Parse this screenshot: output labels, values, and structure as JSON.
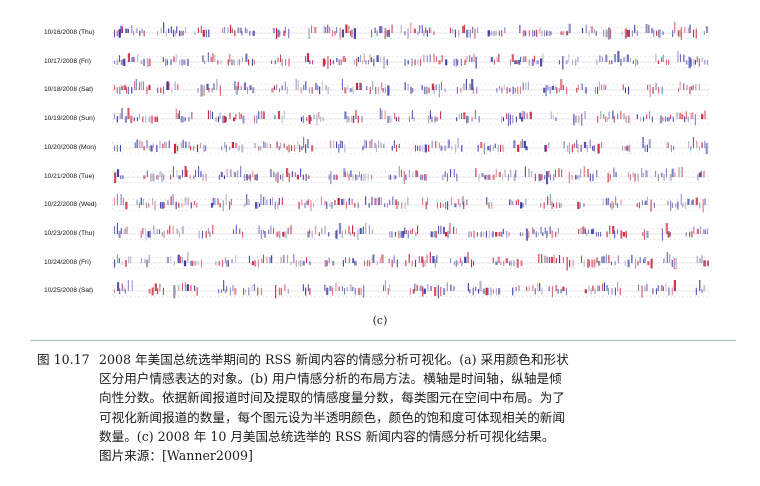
{
  "figure": {
    "rows": [
      "10/16/2008 (Thu)",
      "10/17/2008 (Fri)",
      "10/18/2008 (Sat)",
      "10/19/2008 (Sun)",
      "10/20/2008 (Mon)",
      "10/21/2008 (Tue)",
      "10/22/2008 (Wed)",
      "10/23/2008 (Thu)",
      "10/24/2008 (Fri)",
      "10/25/2008 (Sat)"
    ],
    "subcaption": "(c)",
    "colors": {
      "positive": "#c0162b",
      "negative": "#2a2a9e",
      "neutral": "#8a8aa8",
      "divider": "#9cc3d3"
    }
  },
  "caption": {
    "number": "图 10.17",
    "lines": [
      "2008 年美国总统选举期间的 RSS 新闻内容的情感分析可视化。(a) 采用颜色和形状",
      "区分用户情感表达的对象。(b) 用户情感分析的布局方法。横轴是时间轴，纵轴是倾",
      "向性分数。依据新闻报道时间及提取的情感度量分数，每类图元在空间中布局。为了",
      "可视化新闻报道的数量，每个图元设为半透明颜色，颜色的饱和度可体现相关的新闻",
      "数量。(c) 2008 年 10 月美国总统选举的 RSS 新闻内容的情感分析可视化结果。"
    ],
    "source": "图片来源：[Wanner2009]"
  }
}
